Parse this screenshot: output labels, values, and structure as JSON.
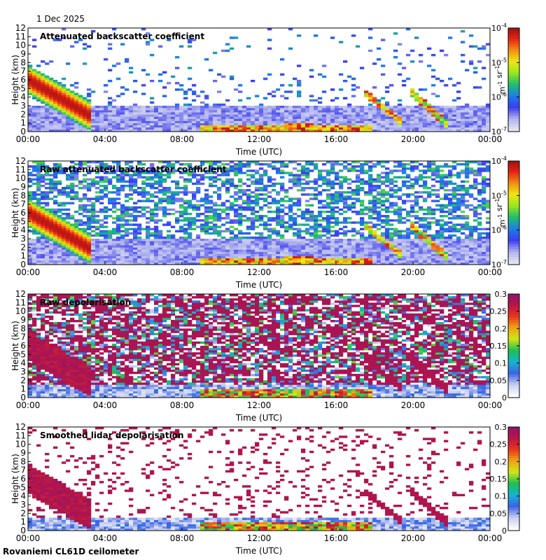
{
  "date": "1 Dec 2025",
  "footer": "Rovaniemi CL61D ceilometer",
  "colors": {
    "background": "#ffffff",
    "axis": "#000000",
    "no_signal": "#dcdcdc"
  },
  "chart_data": [
    {
      "type": "heatmap",
      "title": "Attenuated backscatter coefficient",
      "xlabel": "Time (UTC)",
      "ylabel": "Height (km)",
      "x_ticks": [
        "00:00",
        "04:00",
        "08:00",
        "12:00",
        "16:00",
        "20:00",
        "00:00"
      ],
      "y_ticks": [
        "0",
        "1",
        "2",
        "3",
        "4",
        "5",
        "6",
        "7",
        "8",
        "9",
        "10",
        "11",
        "12"
      ],
      "ylim": [
        0,
        12
      ],
      "colorbar": {
        "scale": "log",
        "ticks": [
          "10-7",
          "10-6",
          "10-5",
          "10-4"
        ],
        "unit": "m-1 sr-1"
      }
    },
    {
      "type": "heatmap",
      "title": "Raw attenuated backscatter coefficient",
      "xlabel": "Time (UTC)",
      "ylabel": "Height (km)",
      "x_ticks": [
        "00:00",
        "04:00",
        "08:00",
        "12:00",
        "16:00",
        "20:00",
        "00:00"
      ],
      "y_ticks": [
        "0",
        "1",
        "2",
        "3",
        "4",
        "5",
        "6",
        "7",
        "8",
        "9",
        "10",
        "11",
        "12"
      ],
      "ylim": [
        0,
        12
      ],
      "colorbar": {
        "scale": "log",
        "ticks": [
          "10-7",
          "10-6",
          "10-5",
          "10-4"
        ],
        "unit": "m-1 sr-1"
      }
    },
    {
      "type": "heatmap",
      "title": "Raw depolarisation",
      "xlabel": "Time (UTC)",
      "ylabel": "Height (km)",
      "x_ticks": [
        "00:00",
        "04:00",
        "08:00",
        "12:00",
        "16:00",
        "20:00",
        "00:00"
      ],
      "y_ticks": [
        "0",
        "1",
        "2",
        "3",
        "4",
        "5",
        "6",
        "7",
        "8",
        "9",
        "10",
        "11",
        "12"
      ],
      "ylim": [
        0,
        12
      ],
      "colorbar": {
        "scale": "linear",
        "ticks": [
          "0",
          "0.05",
          "0.1",
          "0.15",
          "0.2",
          "0.25",
          "0.3"
        ],
        "unit": ""
      }
    },
    {
      "type": "heatmap",
      "title": "Smoothed lidar depolarisation",
      "xlabel": "Time (UTC)",
      "ylabel": "Height (km)",
      "x_ticks": [
        "00:00",
        "04:00",
        "08:00",
        "12:00",
        "16:00",
        "20:00",
        "00:00"
      ],
      "y_ticks": [
        "0",
        "1",
        "2",
        "3",
        "4",
        "5",
        "6",
        "7",
        "8",
        "9",
        "10",
        "11",
        "12"
      ],
      "ylim": [
        0,
        12
      ],
      "colorbar": {
        "scale": "linear",
        "ticks": [
          "0",
          "0.05",
          "0.1",
          "0.15",
          "0.2",
          "0.25",
          "0.3"
        ],
        "unit": ""
      }
    }
  ]
}
